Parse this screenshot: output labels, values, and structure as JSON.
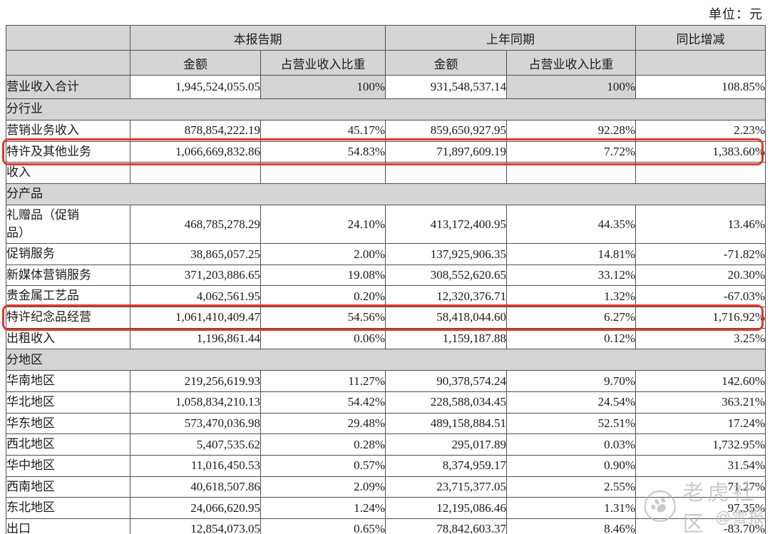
{
  "unit_label": "单位：元",
  "colors": {
    "highlight_red": "#df392a",
    "header_gray": "#d5d5d5",
    "border": "#4f4f4f",
    "watermark_gray": "#bcbcbc"
  },
  "table": {
    "header": {
      "current_period": "本报告期",
      "prior_period": "上年同期",
      "yoy_change": "同比增减",
      "amount": "金额",
      "ratio": "占营业收入比重"
    },
    "rows": [
      {
        "type": "total",
        "label": "营业收入合计",
        "cells": [
          "1,945,524,055.05",
          "100%",
          "931,548,537.14",
          "100%",
          "108.85%"
        ]
      },
      {
        "type": "section",
        "label": "分行业"
      },
      {
        "type": "data",
        "label": "营销业务收入",
        "cells": [
          "878,854,222.19",
          "45.17%",
          "859,650,927.95",
          "92.28%",
          "2.23%"
        ]
      },
      {
        "type": "data",
        "label": "特许及其他业务",
        "cells": [
          "1,066,669,832.86",
          "54.83%",
          "71,897,609.19",
          "7.72%",
          "1,383.60%"
        ],
        "highlight": true
      },
      {
        "type": "data",
        "label": "收入",
        "cells": [
          "",
          "",
          "",
          "",
          ""
        ]
      },
      {
        "type": "section",
        "label": "分产品"
      },
      {
        "type": "data",
        "label": "礼赠品（促销\n品）",
        "cells": [
          "468,785,278.29",
          "24.10%",
          "413,172,400.95",
          "44.35%",
          "13.46%"
        ]
      },
      {
        "type": "data",
        "label": "促销服务",
        "cells": [
          "38,865,057.25",
          "2.00%",
          "137,925,906.35",
          "14.81%",
          "-71.82%"
        ]
      },
      {
        "type": "data",
        "label": "新媒体营销服务",
        "cells": [
          "371,203,886.65",
          "19.08%",
          "308,552,620.65",
          "33.12%",
          "20.30%"
        ]
      },
      {
        "type": "data",
        "label": "贵金属工艺品",
        "cells": [
          "4,062,561.95",
          "0.20%",
          "12,320,376.71",
          "1.32%",
          "-67.03%"
        ]
      },
      {
        "type": "data",
        "label": "特许纪念品经营",
        "cells": [
          "1,061,410,409.47",
          "54.56%",
          "58,418,044.60",
          "6.27%",
          "1,716.92%"
        ],
        "highlight": true
      },
      {
        "type": "data",
        "label": "出租收入",
        "cells": [
          "1,196,861.44",
          "0.06%",
          "1,159,187.88",
          "0.12%",
          "3.25%"
        ]
      },
      {
        "type": "section",
        "label": "分地区"
      },
      {
        "type": "data",
        "label": "华南地区",
        "cells": [
          "219,256,619.93",
          "11.27%",
          "90,378,574.24",
          "9.70%",
          "142.60%"
        ]
      },
      {
        "type": "data",
        "label": "华北地区",
        "cells": [
          "1,058,834,210.13",
          "54.42%",
          "228,588,034.45",
          "24.54%",
          "363.21%"
        ]
      },
      {
        "type": "data",
        "label": "华东地区",
        "cells": [
          "573,470,036.98",
          "29.48%",
          "489,158,884.51",
          "52.51%",
          "17.24%"
        ]
      },
      {
        "type": "data",
        "label": "西北地区",
        "cells": [
          "5,407,535.62",
          "0.28%",
          "295,017.89",
          "0.03%",
          "1,732.95%"
        ]
      },
      {
        "type": "data",
        "label": "华中地区",
        "cells": [
          "11,016,450.53",
          "0.57%",
          "8,374,959.17",
          "0.90%",
          "31.54%"
        ]
      },
      {
        "type": "data",
        "label": "西南地区",
        "cells": [
          "40,618,507.86",
          "2.09%",
          "23,715,377.05",
          "2.55%",
          "71.27%"
        ]
      },
      {
        "type": "data",
        "label": "东北地区",
        "cells": [
          "24,066,620.95",
          "1.24%",
          "12,195,086.46",
          "1.31%",
          "97.35%"
        ]
      },
      {
        "type": "data",
        "label": "出口",
        "cells": [
          "12,854,073.05",
          "0.65%",
          "78,842,603.37",
          "8.46%",
          "-83.70%"
        ]
      }
    ]
  },
  "watermark": {
    "community": "老虎社区",
    "handle": "@雪报"
  }
}
